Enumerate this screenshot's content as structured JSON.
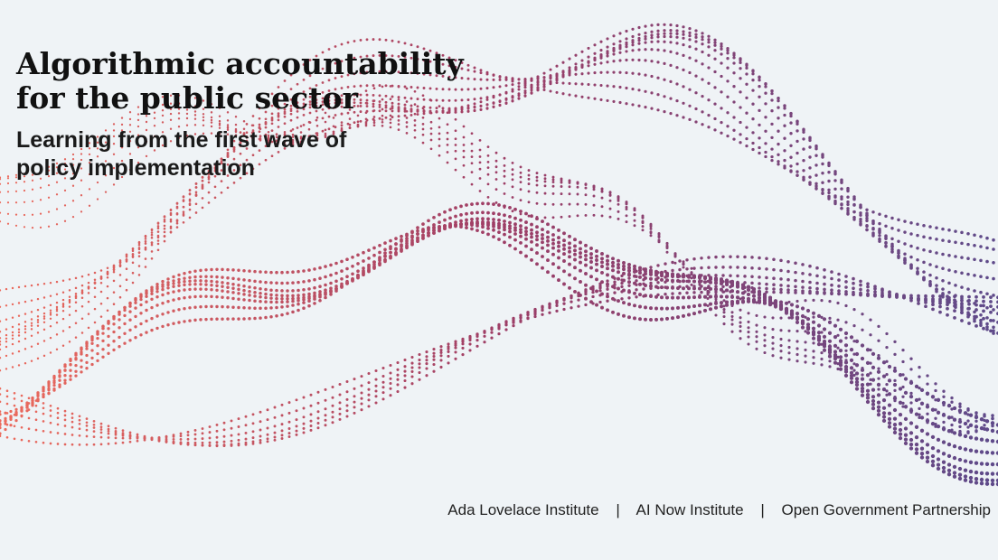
{
  "title": {
    "line1": "Algorithmic accountability",
    "line2": "for the public sector"
  },
  "subtitle": {
    "line1": "Learning from the first wave of",
    "line2": "policy implementation"
  },
  "partners": {
    "items": [
      "Ada Lovelace Institute",
      "AI Now Institute",
      "Open Government Partnership"
    ],
    "separator": "|"
  },
  "colors": {
    "background": "#eff3f6",
    "dots_start": "#ec6a5c",
    "dots_mid": "#9e3e66",
    "dots_end": "#5e4a8a"
  }
}
